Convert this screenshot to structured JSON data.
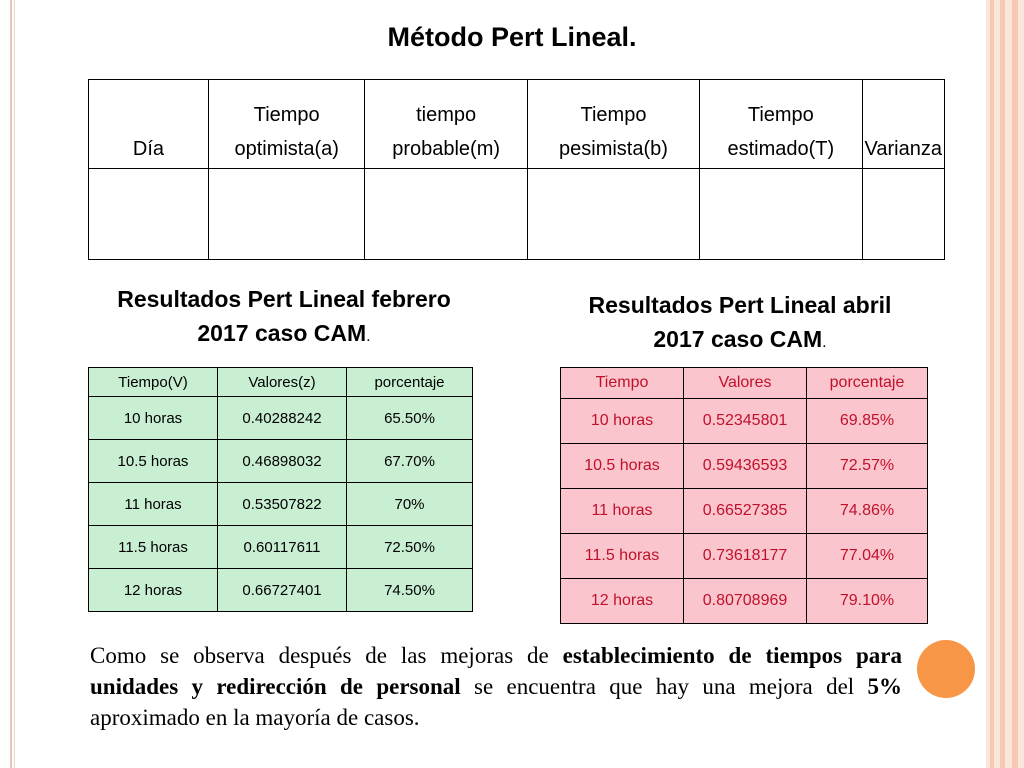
{
  "title": "Método Pert Lineal.",
  "top_table": {
    "headers": [
      [
        "",
        "Día"
      ],
      [
        "Tiempo",
        "optimista(a)"
      ],
      [
        "tiempo",
        "probable(m)"
      ],
      [
        "Tiempo",
        "pesimista(b)"
      ],
      [
        "Tiempo",
        "estimado(T)"
      ],
      [
        "",
        "Varianza"
      ]
    ]
  },
  "feb": {
    "title_line1": "Resultados Pert Lineal febrero",
    "title_line2": "2017 caso CAM",
    "title_dot": ".",
    "headers": [
      "Tiempo(V)",
      "Valores(z)",
      "porcentaje"
    ],
    "rows": [
      [
        "10 horas",
        "0.40288242",
        "65.50%"
      ],
      [
        "10.5 horas",
        "0.46898032",
        "67.70%"
      ],
      [
        "11 horas",
        "0.53507822",
        "70%"
      ],
      [
        "11.5 horas",
        "0.60117611",
        "72.50%"
      ],
      [
        "12 horas",
        "0.66727401",
        "74.50%"
      ]
    ]
  },
  "apr": {
    "title_line1": "Resultados Pert Lineal abril",
    "title_line2": "2017 caso CAM",
    "title_dot": ".",
    "headers": [
      "Tiempo",
      "Valores",
      "porcentaje"
    ],
    "rows": [
      [
        "10 horas",
        "0.52345801",
        "69.85%"
      ],
      [
        "10.5 horas",
        "0.59436593",
        "72.57%"
      ],
      [
        "11 horas",
        "0.66527385",
        "74.86%"
      ],
      [
        "11.5 horas",
        "0.73618177",
        "77.04%"
      ],
      [
        "12 horas",
        "0.80708969",
        "79.10%"
      ]
    ]
  },
  "paragraph": {
    "p1": "Como se observa después de las mejoras de ",
    "b1": "establecimiento de tiempos para unidades y redirección de personal",
    "p2": "  se encuentra que hay una mejora del ",
    "b2": "5%",
    "p3": " aproximado en la mayoría de casos."
  },
  "colors": {
    "green_table": "#c9efd3",
    "pink_table": "#fbc5cd",
    "pink_text": "#c0112c",
    "accent_circle": "#f79646"
  }
}
